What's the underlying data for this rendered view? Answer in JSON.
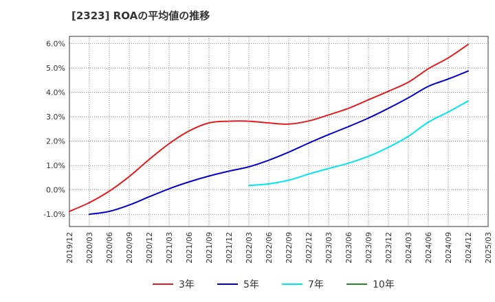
{
  "chart_data": {
    "type": "line",
    "title": "[2323]  ROAの平均値の推移",
    "xlabel": "",
    "ylabel": "",
    "ylim": [
      -1.5,
      6.3
    ],
    "y_ticks": [
      "-1.0%",
      "0.0%",
      "1.0%",
      "2.0%",
      "3.0%",
      "4.0%",
      "5.0%",
      "6.0%"
    ],
    "y_tick_values": [
      -1.0,
      0.0,
      1.0,
      2.0,
      3.0,
      4.0,
      5.0,
      6.0
    ],
    "categories": [
      "2019/12",
      "2020/03",
      "2020/06",
      "2020/09",
      "2020/12",
      "2021/03",
      "2021/06",
      "2021/09",
      "2021/12",
      "2022/03",
      "2022/06",
      "2022/09",
      "2022/12",
      "2023/03",
      "2023/06",
      "2023/09",
      "2023/12",
      "2024/03",
      "2024/06",
      "2024/09",
      "2024/12",
      "2025/03"
    ],
    "grid": true,
    "legend_placement": "bottom",
    "series": [
      {
        "name": "3年",
        "color": "#e41a1c",
        "values": [
          -0.88,
          -0.52,
          -0.05,
          0.55,
          1.25,
          1.9,
          2.42,
          2.75,
          2.82,
          2.82,
          2.75,
          2.7,
          2.83,
          3.08,
          3.35,
          3.7,
          4.05,
          4.42,
          4.97,
          5.42,
          5.97,
          null
        ]
      },
      {
        "name": "5年",
        "color": "#0000cd",
        "values": [
          null,
          -1.0,
          -0.88,
          -0.62,
          -0.28,
          0.05,
          0.33,
          0.57,
          0.77,
          0.95,
          1.22,
          1.55,
          1.92,
          2.27,
          2.6,
          2.95,
          3.35,
          3.78,
          4.25,
          4.55,
          4.88,
          null
        ]
      },
      {
        "name": "7年",
        "color": "#00e5ee",
        "values": [
          null,
          null,
          null,
          null,
          null,
          null,
          null,
          null,
          null,
          0.18,
          0.25,
          0.4,
          0.65,
          0.88,
          1.1,
          1.38,
          1.75,
          2.2,
          2.78,
          3.2,
          3.65,
          null
        ]
      },
      {
        "name": "10年",
        "color": "#228b22",
        "values": [
          null,
          null,
          null,
          null,
          null,
          null,
          null,
          null,
          null,
          null,
          null,
          null,
          null,
          null,
          null,
          null,
          null,
          null,
          null,
          null,
          null,
          null
        ]
      }
    ]
  }
}
